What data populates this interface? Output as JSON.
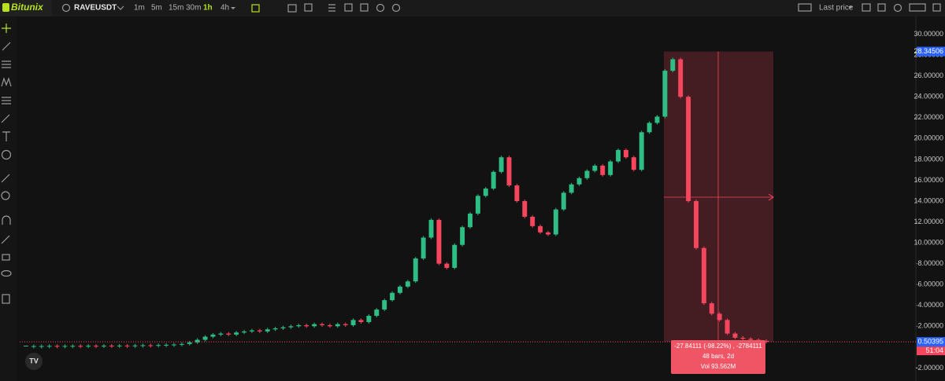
{
  "toolbar": {
    "brand": "Bitunix",
    "symbol": "RAVEUSDT",
    "intervals": [
      "1m",
      "5m",
      "15m",
      "30m",
      "1h",
      "4h"
    ],
    "active_interval": "1h",
    "price_mode": "Last price"
  },
  "chart_data": {
    "type": "candlestick",
    "series": [
      {
        "up_color": "#2ebd85",
        "down_color": "#f6465d",
        "values": [
          0.1,
          0.1,
          0.1,
          0.12,
          0.1,
          0.11,
          0.12,
          0.1,
          0.13,
          0.12,
          0.14,
          0.13,
          0.15,
          0.14,
          0.16,
          0.18,
          0.17,
          0.2,
          0.22,
          0.25,
          0.3,
          0.45,
          0.7,
          1.0,
          1.2,
          1.3,
          1.2,
          1.4,
          1.5,
          1.6,
          1.5,
          1.7,
          1.8,
          1.9,
          2.0,
          2.1,
          2.0,
          2.2,
          2.1,
          2.0,
          2.2,
          2.1,
          2.6,
          2.4,
          3.0,
          3.6,
          4.5,
          5.2,
          5.8,
          6.3,
          8.5,
          10.5,
          12.2,
          8.0,
          7.6,
          9.8,
          11.5,
          12.8,
          14.5,
          15.2,
          16.8,
          18.2,
          15.5,
          14.0,
          12.5,
          11.6,
          11.0,
          10.8,
          13.2,
          14.8,
          15.6,
          16.2,
          16.9,
          17.4,
          16.5,
          17.8,
          18.9,
          18.2,
          17.0,
          20.6,
          21.5,
          22.1,
          26.5,
          27.6,
          24.0,
          14.0,
          9.5,
          4.2,
          3.2,
          2.6,
          1.3,
          0.9,
          0.8,
          0.7,
          0.6,
          0.5
        ]
      }
    ],
    "ylim": [
      -3.25,
      31.7
    ],
    "yticks": [
      {
        "value": 30,
        "label": "30.00000"
      },
      {
        "value": 28,
        "label": "28.00000"
      },
      {
        "value": 26,
        "label": "26.00000"
      },
      {
        "value": 24,
        "label": "24.00000"
      },
      {
        "value": 22,
        "label": "22.00000"
      },
      {
        "value": 20,
        "label": "20.00000"
      },
      {
        "value": 18,
        "label": "18.00000"
      },
      {
        "value": 16,
        "label": "16.00000"
      },
      {
        "value": 14,
        "label": "14.00000"
      },
      {
        "value": 12,
        "label": "12.00000"
      },
      {
        "value": 10,
        "label": "10.00000"
      },
      {
        "value": 8,
        "label": "8.00000"
      },
      {
        "value": 6,
        "label": "6.00000"
      },
      {
        "value": 4,
        "label": "4.00000"
      },
      {
        "value": 2,
        "label": "2.00000"
      },
      {
        "value": -2,
        "label": "-2.00000"
      }
    ],
    "price_labels": [
      28.34506,
      0.50395
    ],
    "countdown": "51:04",
    "measure": {
      "lines": [
        "-27.84111 (-98.22%) , -2784111",
        "48 bars, 2d",
        "Vol 93.562M"
      ]
    }
  }
}
